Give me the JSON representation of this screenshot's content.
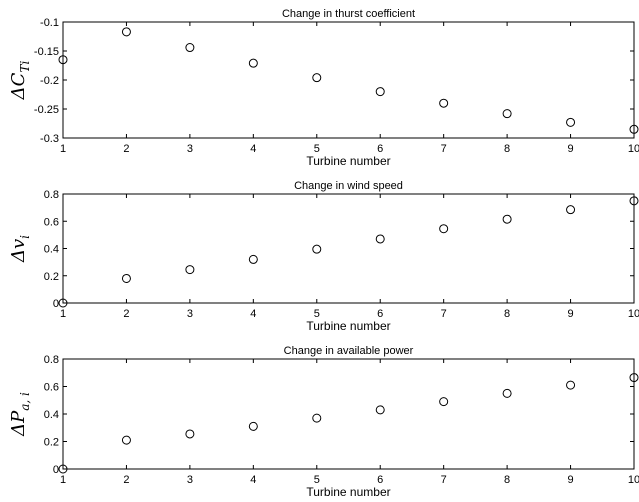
{
  "chart_data": [
    {
      "type": "scatter",
      "title": "Change in thurst coefficient",
      "xlabel": "Turbine number",
      "ylabel": "ΔC_Ti",
      "ylabel_main": "ΔC",
      "ylabel_sub": "Ti",
      "xlim": [
        1,
        10
      ],
      "ylim": [
        -0.3,
        -0.1
      ],
      "xticks": [
        "1",
        "2",
        "3",
        "4",
        "5",
        "6",
        "7",
        "8",
        "9",
        "10"
      ],
      "yticks": [
        "-0.3",
        "-0.25",
        "-0.2",
        "-0.15",
        "-0.1"
      ],
      "x": [
        1,
        2,
        3,
        4,
        5,
        6,
        7,
        8,
        9,
        10
      ],
      "y": [
        -0.165,
        -0.117,
        -0.144,
        -0.171,
        -0.196,
        -0.22,
        -0.24,
        -0.258,
        -0.273,
        -0.285
      ],
      "grid": false,
      "marker": "circle-open"
    },
    {
      "type": "scatter",
      "title": "Change in wind speed",
      "xlabel": "Turbine number",
      "ylabel": "Δv_i",
      "ylabel_main": "Δv",
      "ylabel_sub": "i",
      "xlim": [
        1,
        10
      ],
      "ylim": [
        0,
        0.8
      ],
      "xticks": [
        "1",
        "2",
        "3",
        "4",
        "5",
        "6",
        "7",
        "8",
        "9",
        "10"
      ],
      "yticks": [
        "0",
        "0.2",
        "0.4",
        "0.6",
        "0.8"
      ],
      "x": [
        1,
        2,
        3,
        4,
        5,
        6,
        7,
        8,
        9,
        10
      ],
      "y": [
        0,
        0.18,
        0.245,
        0.32,
        0.395,
        0.47,
        0.545,
        0.615,
        0.685,
        0.75
      ],
      "grid": false,
      "marker": "circle-open"
    },
    {
      "type": "scatter",
      "title": "Change in available power",
      "xlabel": "Turbine number",
      "ylabel": "ΔP_a,i",
      "ylabel_main": "ΔP",
      "ylabel_sub": "a, i",
      "xlim": [
        1,
        10
      ],
      "ylim": [
        0,
        0.8
      ],
      "xticks": [
        "1",
        "2",
        "3",
        "4",
        "5",
        "6",
        "7",
        "8",
        "9",
        "10"
      ],
      "yticks": [
        "0",
        "0.2",
        "0.4",
        "0.6",
        "0.8"
      ],
      "x": [
        1,
        2,
        3,
        4,
        5,
        6,
        7,
        8,
        9,
        10
      ],
      "y": [
        0,
        0.21,
        0.255,
        0.31,
        0.37,
        0.43,
        0.49,
        0.55,
        0.61,
        0.665
      ],
      "grid": false,
      "marker": "circle-open"
    }
  ]
}
